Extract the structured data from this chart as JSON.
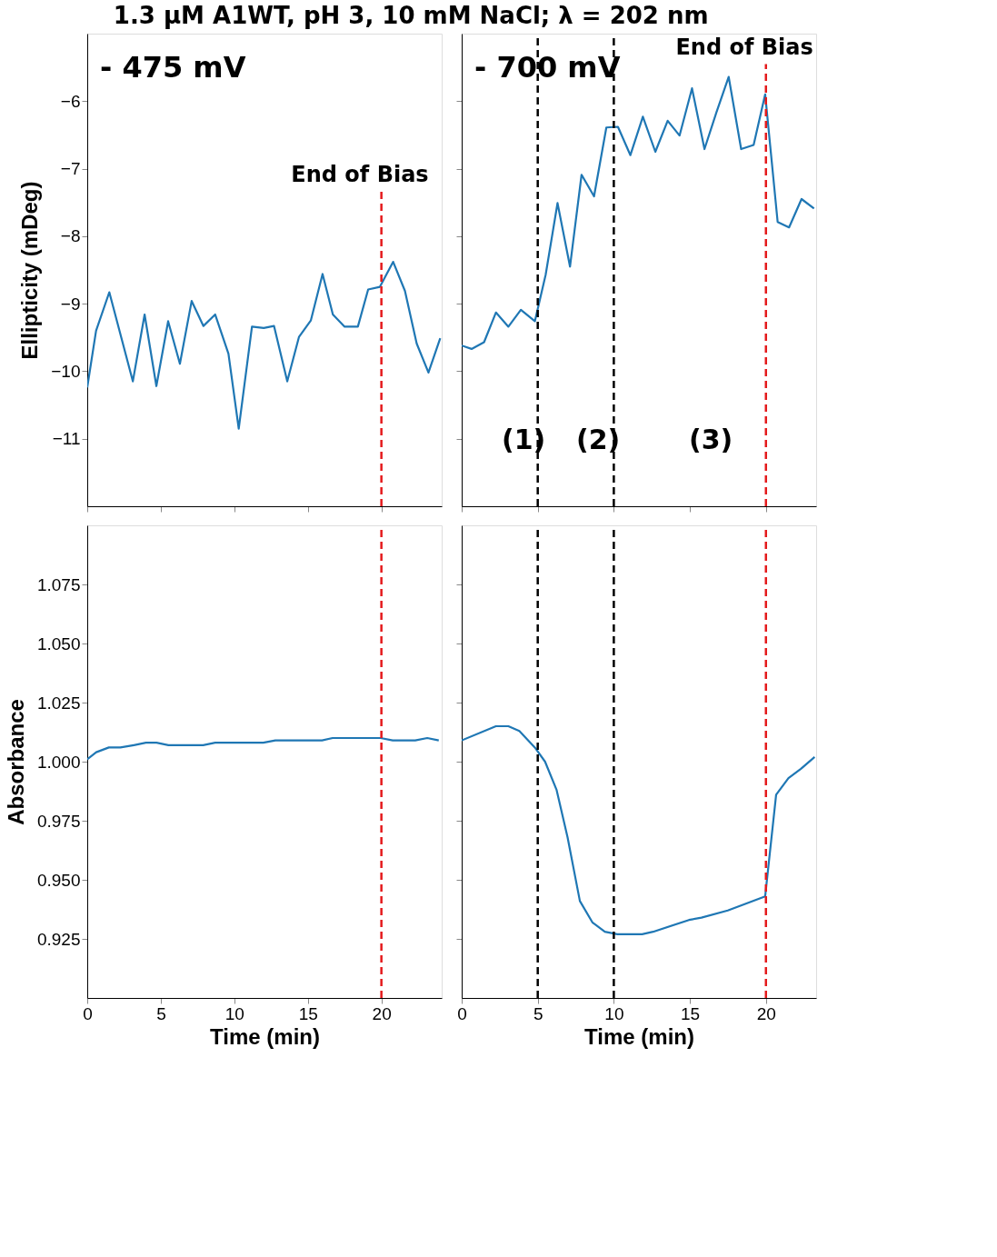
{
  "chart_data": [
    {
      "type": "line",
      "title": "1.3 μM A1WT, pH 3, 10 mM NaCl; λ = 202 nm",
      "ylabel": "Ellipticity (mDeg)",
      "annotations": [
        "- 475 mV"
      ],
      "x": [
        0,
        0.6,
        1.5,
        3.1,
        3.9,
        4.7,
        5.5,
        6.3,
        7.1,
        7.9,
        8.7,
        9.6,
        10.3,
        11.2,
        12.0,
        12.7,
        13.6,
        14.4,
        15.2,
        16.0,
        16.7,
        17.5,
        18.4,
        19.1,
        19.9,
        20.8,
        21.6,
        22.4,
        23.2,
        24.0
      ],
      "series": [
        {
          "color": "#1f77b4",
          "values": [
            -10.24,
            -9.4,
            -8.83,
            -10.15,
            -9.16,
            -10.22,
            -9.26,
            -9.89,
            -8.96,
            -9.33,
            -9.16,
            -9.74,
            -10.85,
            -9.34,
            -9.36,
            -9.33,
            -10.15,
            -9.49,
            -9.25,
            -8.56,
            -9.16,
            -9.34,
            -9.34,
            -8.79,
            -8.75,
            -8.38,
            -8.81,
            -9.59,
            -10.02,
            -9.51
          ]
        }
      ],
      "xlim": [
        0,
        24.1
      ],
      "ylim": [
        -12,
        -5
      ],
      "xticks": [
        0,
        5,
        10,
        15,
        20
      ],
      "yticks": [
        {
          "value": -11,
          "label": "−11"
        },
        {
          "value": -10,
          "label": "−10"
        },
        {
          "value": -9,
          "label": "−9"
        },
        {
          "value": -8,
          "label": "−8"
        },
        {
          "value": -7,
          "label": "−7"
        },
        {
          "value": -6,
          "label": "−6"
        }
      ],
      "ref_lines": [
        {
          "axis": "x",
          "value": 20,
          "label": "End of Bias",
          "color": "#e41a1c",
          "line_style": "dashed"
        }
      ],
      "tick_labels": "y",
      "grid": false,
      "line_style": "solid",
      "marker": "none"
    },
    {
      "type": "line",
      "annotations": [
        "- 700 mV",
        "(1)",
        "(2)",
        "(3)"
      ],
      "x": [
        0,
        0.65,
        1.47,
        2.25,
        3.07,
        3.89,
        4.81,
        5.52,
        6.3,
        7.12,
        7.88,
        8.7,
        9.51,
        10.27,
        11.09,
        11.91,
        12.73,
        13.54,
        14.32,
        15.14,
        15.96,
        16.74,
        17.55,
        18.37,
        19.19,
        19.95,
        20.77,
        21.52,
        22.34,
        23.16
      ],
      "series": [
        {
          "color": "#1f77b4",
          "values": [
            -9.62,
            -9.67,
            -9.57,
            -9.13,
            -9.34,
            -9.09,
            -9.26,
            -8.57,
            -7.51,
            -8.45,
            -7.09,
            -7.41,
            -6.39,
            -6.38,
            -6.8,
            -6.23,
            -6.75,
            -6.29,
            -6.51,
            -5.81,
            -6.71,
            -6.17,
            -5.64,
            -6.71,
            -6.65,
            -5.9,
            -7.79,
            -7.87,
            -7.45,
            -7.59
          ]
        }
      ],
      "xlim": [
        0,
        23.3
      ],
      "ylim": [
        -12,
        -5
      ],
      "xticks": [
        0,
        5,
        10,
        15,
        20
      ],
      "yticks": [
        -11,
        -10,
        -9,
        -8,
        -7,
        -6
      ],
      "ref_lines": [
        {
          "axis": "x",
          "value": 5,
          "color": "#000000",
          "line_style": "dashed"
        },
        {
          "axis": "x",
          "value": 10,
          "color": "#000000",
          "line_style": "dashed"
        },
        {
          "axis": "x",
          "value": 20,
          "label": "End of Bias",
          "color": "#e41a1c",
          "line_style": "dashed"
        }
      ],
      "tick_labels": false,
      "grid": false,
      "line_style": "solid",
      "marker": "none"
    },
    {
      "type": "line",
      "xlabel": "Time (min)",
      "ylabel": "Absorbance",
      "x": [
        0,
        0.61,
        1.47,
        2.25,
        3.17,
        3.99,
        4.71,
        5.52,
        6.34,
        7.16,
        7.88,
        8.7,
        9.51,
        10.33,
        11.15,
        11.97,
        12.79,
        13.61,
        14.32,
        15.14,
        15.96,
        16.68,
        17.49,
        18.31,
        19.13,
        19.95,
        20.77,
        21.59,
        22.3,
        23.12,
        23.9
      ],
      "series": [
        {
          "color": "#1f77b4",
          "values": [
            1.001,
            1.004,
            1.006,
            1.006,
            1.007,
            1.008,
            1.008,
            1.007,
            1.007,
            1.007,
            1.007,
            1.008,
            1.008,
            1.008,
            1.008,
            1.008,
            1.009,
            1.009,
            1.009,
            1.009,
            1.009,
            1.01,
            1.01,
            1.01,
            1.01,
            1.01,
            1.009,
            1.009,
            1.009,
            1.01,
            1.009
          ]
        }
      ],
      "xlim": [
        0,
        24.1
      ],
      "ylim": [
        0.9,
        1.1
      ],
      "xticks": [
        0,
        5,
        10,
        15,
        20
      ],
      "yticks": [
        {
          "value": 0.925,
          "label": "0.925"
        },
        {
          "value": 0.95,
          "label": "0.950"
        },
        {
          "value": 0.975,
          "label": "0.975"
        },
        {
          "value": 1.0,
          "label": "1.000"
        },
        {
          "value": 1.025,
          "label": "1.025"
        },
        {
          "value": 1.05,
          "label": "1.050"
        },
        {
          "value": 1.075,
          "label": "1.075"
        }
      ],
      "ref_lines": [
        {
          "axis": "x",
          "value": 20,
          "color": "#e41a1c",
          "line_style": "dashed"
        }
      ],
      "grid": false,
      "line_style": "solid",
      "marker": "none"
    },
    {
      "type": "line",
      "xlabel": "Time (min)",
      "x": [
        0,
        2.25,
        3.07,
        3.79,
        4.81,
        5.48,
        6.24,
        6.96,
        7.77,
        8.59,
        9.41,
        10.23,
        11.86,
        12.58,
        14.94,
        15.76,
        17.49,
        19.95,
        20.67,
        21.48,
        22.3,
        23.2
      ],
      "series": [
        {
          "color": "#1f77b4",
          "values": [
            1.009,
            1.015,
            1.015,
            1.013,
            1.006,
            1.0,
            0.988,
            0.968,
            0.941,
            0.932,
            0.928,
            0.927,
            0.927,
            0.928,
            0.933,
            0.934,
            0.937,
            0.943,
            0.986,
            0.993,
            0.997,
            1.002
          ]
        }
      ],
      "xlim": [
        0,
        23.3
      ],
      "ylim": [
        0.9,
        1.1
      ],
      "xticks": [
        0,
        5,
        10,
        15,
        20
      ],
      "yticks": [
        0.925,
        0.95,
        0.975,
        1.0,
        1.025,
        1.05,
        1.075
      ],
      "ref_lines": [
        {
          "axis": "x",
          "value": 5,
          "color": "#000000",
          "line_style": "dashed"
        },
        {
          "axis": "x",
          "value": 10,
          "color": "#000000",
          "line_style": "dashed"
        },
        {
          "axis": "x",
          "value": 20,
          "color": "#e41a1c",
          "line_style": "dashed"
        }
      ],
      "tick_labels": "x",
      "grid": false,
      "line_style": "solid",
      "marker": "none"
    }
  ]
}
